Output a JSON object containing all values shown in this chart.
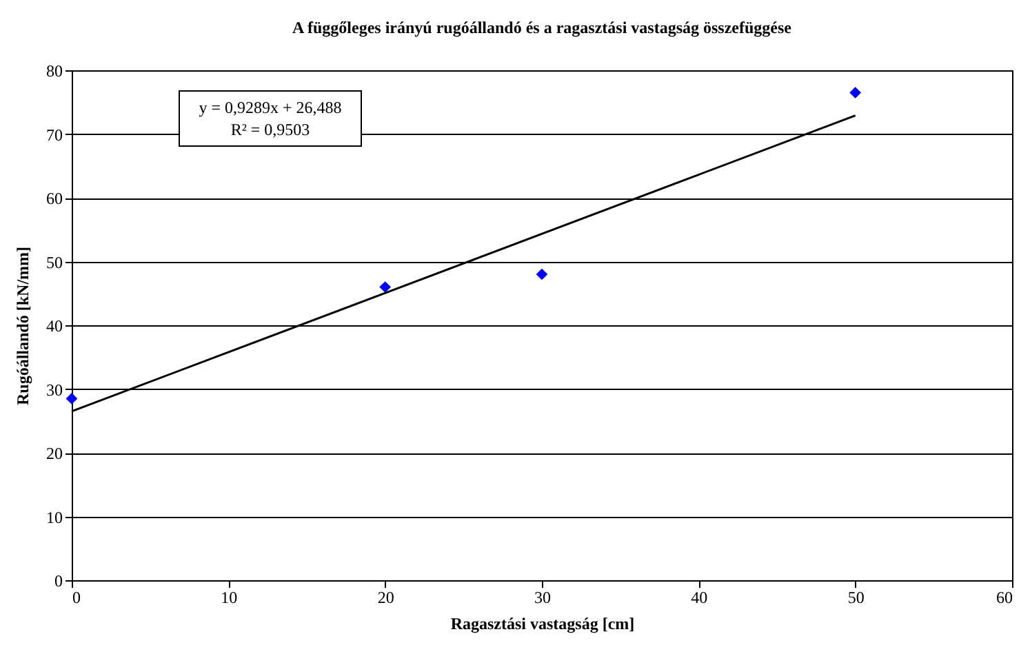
{
  "chart_data": {
    "type": "scatter",
    "title": "A függőleges irányú rugóállandó és a ragasztási vastagság összefüggése",
    "xlabel": "Ragasztási vastagság [cm]",
    "ylabel": "Rugóállandó [kN/mm]",
    "series": [
      {
        "color": "#0000ff",
        "marker": "diamond",
        "x": [
          0,
          20,
          30,
          50
        ],
        "values": [
          28.5,
          46,
          48,
          76.5
        ]
      },
      {
        "type": "line",
        "color": "#000000",
        "line_style": "solid",
        "x": [
          0,
          50
        ],
        "values": [
          26.5,
          72.9
        ]
      }
    ],
    "annotations": [
      "y = 0,9289x + 26,488",
      "R² = 0,9503"
    ],
    "xlim": [
      0,
      60
    ],
    "xticks": [
      0,
      10,
      20,
      30,
      40,
      50,
      60
    ],
    "ylim": [
      0,
      80
    ],
    "yticks": [
      0,
      10,
      20,
      30,
      40,
      50,
      60,
      70,
      80
    ],
    "grid": "y"
  }
}
